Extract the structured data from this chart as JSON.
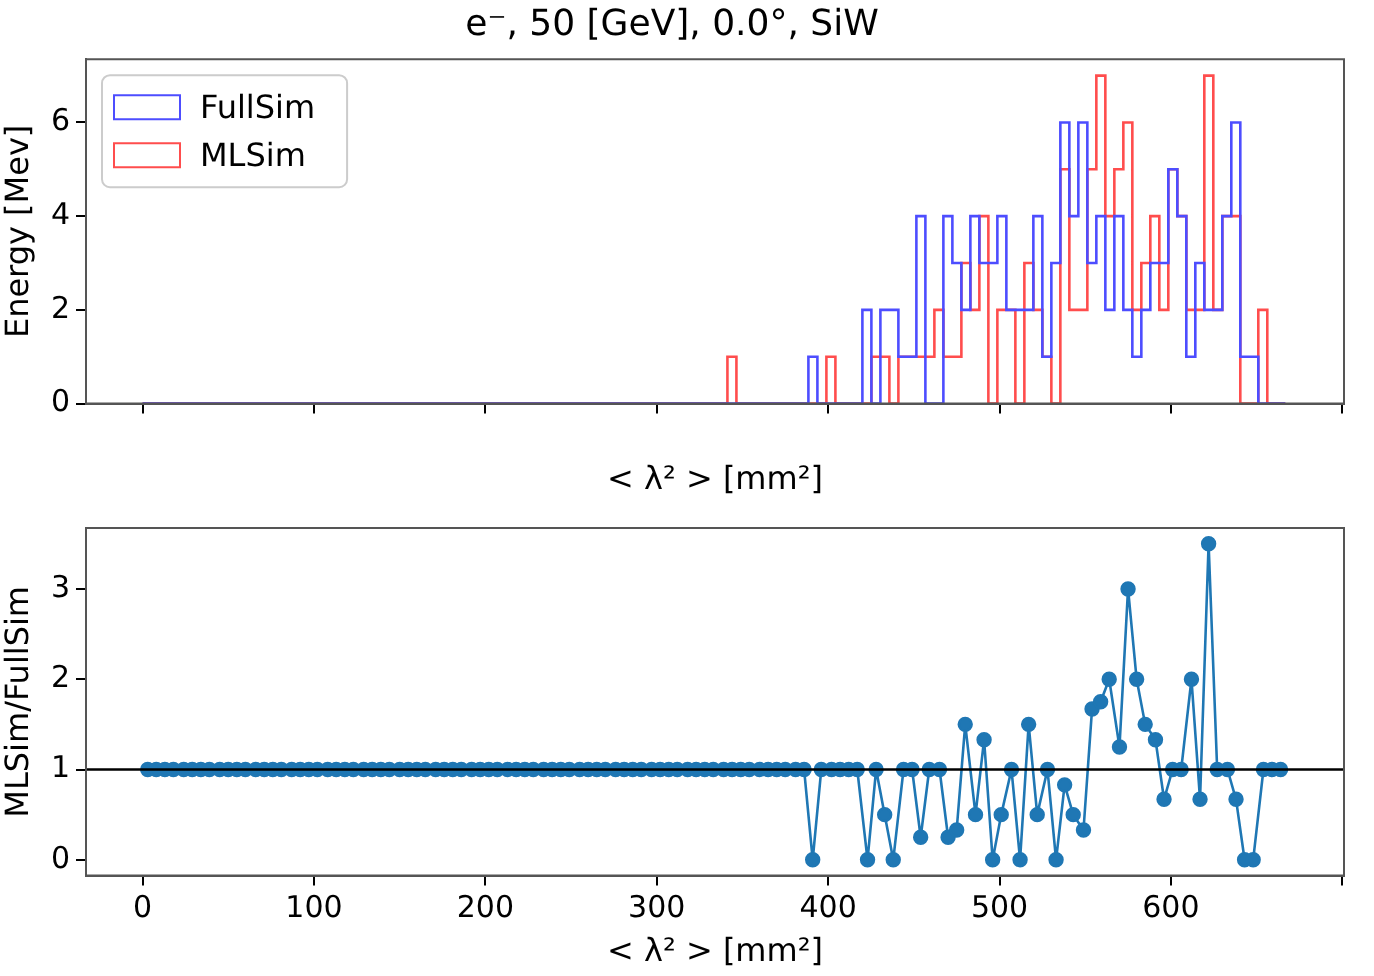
{
  "chart_data": [
    {
      "type": "histogram",
      "title": "e⁻, 50 [GeV], 0.0°, SiW",
      "xlabel": "< λ² > [mm²]",
      "ylabel": "Energy [Mev]",
      "legend": "top left",
      "tick_labels": "y",
      "grid": false,
      "xlim": [
        -33,
        701
      ],
      "xticks": [
        0,
        100,
        200,
        300,
        400,
        500,
        600,
        {
          "value": 700,
          "label": null
        }
      ],
      "ylim": [
        0,
        7.35
      ],
      "yticks": [
        0,
        2,
        4,
        6
      ],
      "bins": [
        0,
        5.25,
        10.5,
        15.75,
        21,
        26.25,
        31.5,
        36.75,
        42,
        47.25,
        52.5,
        57.75,
        63,
        68.25,
        73.5,
        78.75,
        84,
        89.25,
        94.5,
        99.75,
        105,
        110.25,
        115.5,
        120.75,
        126,
        131.25,
        136.5,
        141.75,
        147,
        152.25,
        157.5,
        162.75,
        168,
        173.25,
        178.5,
        183.75,
        189,
        194.25,
        199.5,
        204.75,
        210,
        215.25,
        220.5,
        225.75,
        231,
        236.25,
        241.5,
        246.75,
        252,
        257.25,
        262.5,
        267.75,
        273,
        278.25,
        283.5,
        288.75,
        294,
        299.25,
        304.5,
        309.75,
        315,
        320.25,
        325.5,
        330.75,
        336,
        341.25,
        346.5,
        351.75,
        357,
        362.25,
        367.5,
        372.75,
        378,
        383.25,
        388.5,
        393.75,
        399,
        404.25,
        409.5,
        414.75,
        420,
        425.25,
        430.5,
        435.75,
        441,
        446.25,
        451.5,
        456.75,
        462,
        467.25,
        472.5,
        477.75,
        483,
        488.25,
        493.5,
        498.75,
        504,
        509.25,
        514.5,
        519.75,
        525,
        530.25,
        535.5,
        540.75,
        546,
        551.25,
        556.5,
        561.75,
        567,
        572.25,
        577.5,
        582.75,
        588,
        593.25,
        598.5,
        603.75,
        609,
        614.25,
        619.5,
        624.75,
        630,
        635.25,
        640.5,
        645.75,
        651,
        656.25,
        661.5,
        666.75
      ],
      "series": [
        {
          "name": "FullSim",
          "color": "#4d4dff",
          "values": [
            0,
            0,
            0,
            0,
            0,
            0,
            0,
            0,
            0,
            0,
            0,
            0,
            0,
            0,
            0,
            0,
            0,
            0,
            0,
            0,
            0,
            0,
            0,
            0,
            0,
            0,
            0,
            0,
            0,
            0,
            0,
            0,
            0,
            0,
            0,
            0,
            0,
            0,
            0,
            0,
            0,
            0,
            0,
            0,
            0,
            0,
            0,
            0,
            0,
            0,
            0,
            0,
            0,
            0,
            0,
            0,
            0,
            0,
            0,
            0,
            0,
            0,
            0,
            0,
            0,
            0,
            0,
            0,
            0,
            0,
            0,
            0,
            0,
            0,
            1,
            0,
            0,
            0,
            0,
            0,
            2,
            0,
            2,
            2,
            1,
            1,
            4,
            0,
            0,
            4,
            3,
            2,
            4,
            3,
            3,
            4,
            2,
            2,
            2,
            4,
            1,
            3,
            6,
            4,
            6,
            3,
            4,
            2,
            4,
            2,
            1,
            2,
            3,
            3,
            5,
            4,
            1,
            3,
            2,
            2,
            4,
            6,
            1,
            1,
            0,
            0,
            0
          ]
        },
        {
          "name": "MLSim",
          "color": "#ff4d4d",
          "values": [
            0,
            0,
            0,
            0,
            0,
            0,
            0,
            0,
            0,
            0,
            0,
            0,
            0,
            0,
            0,
            0,
            0,
            0,
            0,
            0,
            0,
            0,
            0,
            0,
            0,
            0,
            0,
            0,
            0,
            0,
            0,
            0,
            0,
            0,
            0,
            0,
            0,
            0,
            0,
            0,
            0,
            0,
            0,
            0,
            0,
            0,
            0,
            0,
            0,
            0,
            0,
            0,
            0,
            0,
            0,
            0,
            0,
            0,
            0,
            0,
            0,
            0,
            0,
            0,
            0,
            1,
            0,
            0,
            0,
            0,
            0,
            0,
            0,
            0,
            0,
            0,
            1,
            0,
            0,
            0,
            0,
            1,
            1,
            0,
            1,
            1,
            1,
            1,
            2,
            1,
            1,
            3,
            2,
            4,
            0,
            2,
            2,
            0,
            3,
            2,
            1,
            0,
            5,
            2,
            2,
            5,
            7,
            4,
            5,
            6,
            2,
            3,
            4,
            2,
            5,
            4,
            2,
            2,
            7,
            2,
            4,
            4,
            0,
            0,
            2,
            0,
            0
          ]
        }
      ]
    },
    {
      "type": "line",
      "xlabel": "< λ² > [mm²]",
      "ylabel": "MLSim/FullSim",
      "grid": false,
      "marker": "circle",
      "color": "#1f77b4",
      "xlim": [
        -33,
        701
      ],
      "xticks": [
        0,
        100,
        200,
        300,
        400,
        500,
        600,
        {
          "value": 700,
          "label": null
        }
      ],
      "ylim": [
        -0.175,
        3.675
      ],
      "yticks": [
        0,
        1,
        2,
        3
      ],
      "ref_lines": [
        {
          "axis": "y",
          "value": 1,
          "color": "#000000"
        }
      ],
      "x": [
        3,
        8,
        13,
        18,
        24,
        29,
        34,
        39,
        45,
        50,
        55,
        60,
        66,
        71,
        76,
        81,
        87,
        92,
        97,
        102,
        108,
        113,
        118,
        123,
        129,
        134,
        139,
        144,
        150,
        155,
        160,
        165,
        171,
        176,
        181,
        186,
        192,
        197,
        202,
        207,
        213,
        218,
        223,
        228,
        234,
        239,
        244,
        249,
        255,
        260,
        265,
        270,
        276,
        281,
        286,
        291,
        297,
        302,
        307,
        312,
        318,
        323,
        328,
        333,
        339,
        344,
        349,
        354,
        360,
        365,
        370,
        375,
        381,
        386,
        391,
        396,
        402,
        407,
        412,
        417,
        423,
        428,
        433,
        438,
        444,
        449,
        454,
        459,
        465,
        470,
        475,
        480,
        486,
        491,
        496,
        501,
        507,
        512,
        517,
        522,
        528,
        533,
        538,
        543,
        549,
        554,
        559,
        564,
        570,
        575,
        580,
        585,
        591,
        596,
        601,
        606,
        612,
        617,
        622,
        627,
        633,
        638,
        643,
        648,
        654,
        659,
        664
      ],
      "values": [
        1,
        1,
        1,
        1,
        1,
        1,
        1,
        1,
        1,
        1,
        1,
        1,
        1,
        1,
        1,
        1,
        1,
        1,
        1,
        1,
        1,
        1,
        1,
        1,
        1,
        1,
        1,
        1,
        1,
        1,
        1,
        1,
        1,
        1,
        1,
        1,
        1,
        1,
        1,
        1,
        1,
        1,
        1,
        1,
        1,
        1,
        1,
        1,
        1,
        1,
        1,
        1,
        1,
        1,
        1,
        1,
        1,
        1,
        1,
        1,
        1,
        1,
        1,
        1,
        1,
        1,
        1,
        1,
        1,
        1,
        1,
        1,
        1,
        1,
        0,
        1,
        1,
        1,
        1,
        1,
        0,
        1,
        0.5,
        0,
        1,
        1,
        0.25,
        1,
        1,
        0.25,
        0.33,
        1.5,
        0.5,
        1.33,
        0,
        0.5,
        1,
        0,
        1.5,
        0.5,
        1,
        0,
        0.83,
        0.5,
        0.33,
        1.67,
        1.75,
        2,
        1.25,
        3,
        2,
        1.5,
        1.33,
        0.67,
        1,
        1,
        2,
        0.67,
        3.5,
        1,
        1,
        0.67,
        0,
        0,
        1,
        1,
        1
      ]
    }
  ]
}
